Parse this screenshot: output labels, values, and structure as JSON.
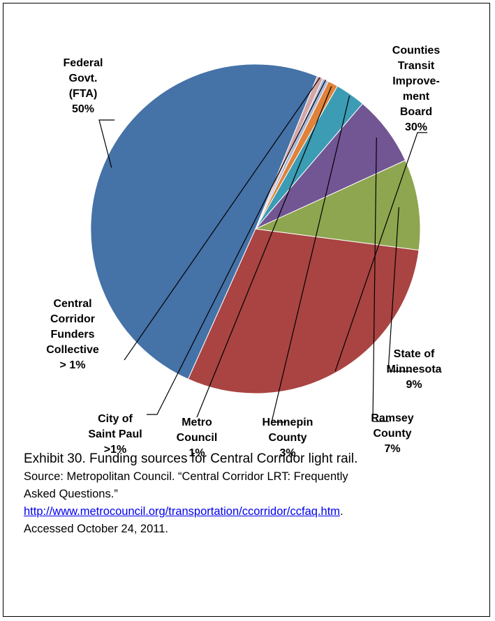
{
  "chart_data": {
    "type": "pie",
    "title": "",
    "slices": [
      {
        "name": "Federal Govt. (FTA)",
        "label_lines": [
          "Federal",
          "Govt.",
          "(FTA)",
          "50%"
        ],
        "value": 50,
        "color": "#4572a7"
      },
      {
        "name": "Counties Transit Improvement Board",
        "label_lines": [
          "Counties",
          "Transit",
          "Improve-",
          "ment",
          "Board",
          "30%"
        ],
        "value": 30,
        "color": "#a94442"
      },
      {
        "name": "State of Minnesota",
        "label_lines": [
          "State of",
          "Minnesota",
          "9%"
        ],
        "value": 9,
        "color": "#8ea64f"
      },
      {
        "name": "Ramsey County",
        "label_lines": [
          "Ramsey",
          "County",
          "7%"
        ],
        "value": 7,
        "color": "#725593"
      },
      {
        "name": "Hennepin County",
        "label_lines": [
          "Hennepin",
          "County",
          "3%"
        ],
        "value": 3,
        "color": "#3b9cb4"
      },
      {
        "name": "Metro Council",
        "label_lines": [
          "Metro",
          "Council",
          "1%"
        ],
        "value": 1,
        "color": "#e0823a"
      },
      {
        "name": "City of Saint Paul",
        "label_lines": [
          "City of",
          "Saint Paul",
          ">1%"
        ],
        "value": 0.6,
        "color": "#a9b8d9"
      },
      {
        "name": "Central Corridor Funders Collective",
        "label_lines": [
          "Central",
          "Corridor",
          "Funders",
          "Collective",
          "> 1%"
        ],
        "value": 0.6,
        "color": "#d4a6a7"
      }
    ]
  },
  "caption": {
    "line1": "Exhibit 30. Funding sources for Central Corridor light rail.",
    "line2": "Source: Metropolitan Council. “Central Corridor LRT: Frequently",
    "line3": "Asked Questions.”",
    "link": "http://www.metrocouncil.org/transportation/ccorridor/ccfaq.htm",
    "link_suffix": ".",
    "line5": "Accessed October 24, 2011."
  }
}
